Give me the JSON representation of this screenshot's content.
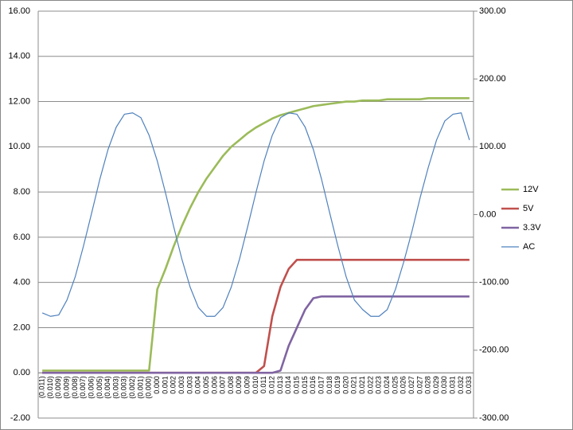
{
  "chart_data": {
    "type": "line",
    "categories": [
      "(0.011)",
      "(0.010)",
      "(0.009)",
      "(0.009)",
      "(0.008)",
      "(0.007)",
      "(0.006)",
      "(0.005)",
      "(0.004)",
      "(0.003)",
      "(0.003)",
      "(0.002)",
      "(0.001)",
      "(0.000)",
      "0.000",
      "0.001",
      "0.002",
      "0.003",
      "0.003",
      "0.004",
      "0.005",
      "0.006",
      "0.007",
      "0.008",
      "0.009",
      "0.009",
      "0.010",
      "0.011",
      "0.012",
      "0.013",
      "0.014",
      "0.015",
      "0.015",
      "0.016",
      "0.017",
      "0.018",
      "0.019",
      "0.020",
      "0.021",
      "0.021",
      "0.022",
      "0.023",
      "0.024",
      "0.025",
      "0.026",
      "0.027",
      "0.027",
      "0.028",
      "0.029",
      "0.030",
      "0.031",
      "0.032",
      "0.033"
    ],
    "series": [
      {
        "name": "12V",
        "color": "#9bbb59",
        "values": [
          0.1,
          0.1,
          0.1,
          0.1,
          0.1,
          0.1,
          0.1,
          0.1,
          0.1,
          0.1,
          0.1,
          0.1,
          0.1,
          0.1,
          3.7,
          4.6,
          5.6,
          6.5,
          7.3,
          8.0,
          8.6,
          9.1,
          9.6,
          10.0,
          10.3,
          10.6,
          10.85,
          11.05,
          11.25,
          11.4,
          11.5,
          11.6,
          11.7,
          11.8,
          11.85,
          11.9,
          11.95,
          12.0,
          12.0,
          12.05,
          12.05,
          12.05,
          12.1,
          12.1,
          12.1,
          12.1,
          12.1,
          12.15,
          12.15,
          12.15,
          12.15,
          12.15,
          12.15
        ]
      },
      {
        "name": "5V",
        "color": "#c0504d",
        "values": [
          0,
          0,
          0,
          0,
          0,
          0,
          0,
          0,
          0,
          0,
          0,
          0,
          0,
          0,
          0,
          0,
          0,
          0,
          0,
          0,
          0,
          0,
          0,
          0,
          0,
          0,
          0,
          0.3,
          2.5,
          3.8,
          4.6,
          5.0,
          5.0,
          5.0,
          5.0,
          5.0,
          5.0,
          5.0,
          5.0,
          5.0,
          5.0,
          5.0,
          5.0,
          5.0,
          5.0,
          5.0,
          5.0,
          5.0,
          5.0,
          5.0,
          5.0,
          5.0,
          5.0
        ]
      },
      {
        "name": "3.3V",
        "color": "#8064a2",
        "values": [
          0,
          0,
          0,
          0,
          0,
          0,
          0,
          0,
          0,
          0,
          0,
          0,
          0,
          0,
          0,
          0,
          0,
          0,
          0,
          0,
          0,
          0,
          0,
          0,
          0,
          0,
          0,
          0,
          0,
          0.1,
          1.2,
          2.0,
          2.8,
          3.3,
          3.38,
          3.38,
          3.38,
          3.38,
          3.38,
          3.38,
          3.38,
          3.38,
          3.38,
          3.38,
          3.38,
          3.38,
          3.38,
          3.38,
          3.38,
          3.38,
          3.38,
          3.38,
          3.38
        ]
      },
      {
        "name": "AC",
        "color": "#4f81bd",
        "axis": "y2",
        "values": [
          -145,
          -150,
          -148,
          -126,
          -92,
          -47,
          2,
          52,
          96,
          129,
          148,
          150,
          143,
          117,
          79,
          32,
          -18,
          -66,
          -107,
          -137,
          -150,
          -150,
          -137,
          -107,
          -66,
          -18,
          32,
          79,
          117,
          143,
          150,
          148,
          129,
          96,
          52,
          2,
          -47,
          -92,
          -126,
          -140,
          -150,
          -150,
          -140,
          -110,
          -70,
          -25,
          25,
          70,
          110,
          138,
          148,
          150,
          110
        ]
      }
    ],
    "ylim": [
      -2,
      16
    ],
    "yticks": [
      {
        "value": -2,
        "label": "-2.00"
      },
      {
        "value": 0,
        "label": "0.00"
      },
      {
        "value": 2,
        "label": "2.00"
      },
      {
        "value": 4,
        "label": "4.00"
      },
      {
        "value": 6,
        "label": "6.00"
      },
      {
        "value": 8,
        "label": "8.00"
      },
      {
        "value": 10,
        "label": "10.00"
      },
      {
        "value": 12,
        "label": "12.00"
      },
      {
        "value": 14,
        "label": "14.00"
      },
      {
        "value": 16,
        "label": "16.00"
      }
    ],
    "y2lim": [
      -300,
      300
    ],
    "y2ticks": [
      {
        "value": -300,
        "label": "-300.00"
      },
      {
        "value": -200,
        "label": "-200.00"
      },
      {
        "value": -100,
        "label": "-100.00"
      },
      {
        "value": 0,
        "label": "0.00"
      },
      {
        "value": 100,
        "label": "100.00"
      },
      {
        "value": 200,
        "label": "200.00"
      },
      {
        "value": 300,
        "label": "300.00"
      }
    ],
    "grid": true,
    "legend": "right"
  }
}
